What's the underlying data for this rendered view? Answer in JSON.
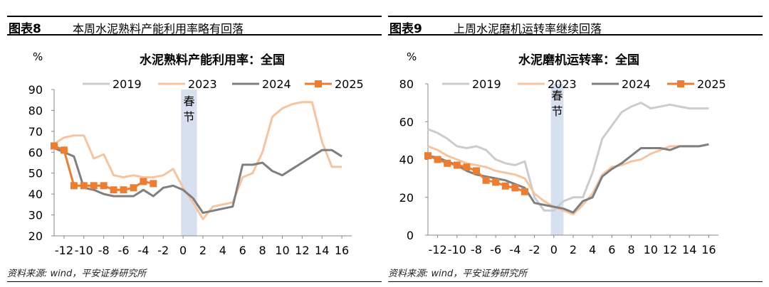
{
  "left_panel": {
    "figure_number": "图表8",
    "figure_title": "本周水泥熟料产能利用率略有回落",
    "source": "资料来源: wind，平安证券研究所"
  },
  "right_panel": {
    "figure_number": "图表9",
    "figure_title": "上周水泥磨机运转率继续回落",
    "source": "资料来源: wind，平安证券研究所"
  },
  "colors": {
    "2019": "#cccccc",
    "2023": "#f7c4a0",
    "2024": "#7f7f7f",
    "2025": "#ed7d31",
    "band": "#d6e0ef"
  },
  "chart_data": [
    {
      "type": "line",
      "title": "水泥熟料产能利用率：全国",
      "ylabel": "%",
      "ylim": [
        20,
        90
      ],
      "yticks": [
        20,
        30,
        40,
        50,
        60,
        70,
        80,
        90
      ],
      "xlim": [
        -13,
        17
      ],
      "xticks": [
        -12,
        -10,
        -8,
        -6,
        -4,
        -2,
        0,
        2,
        4,
        6,
        8,
        10,
        12,
        14,
        16
      ],
      "xticklabels": [
        "-12",
        "-10",
        "-8",
        "-6",
        "-4",
        "-2",
        "0",
        "2",
        "4",
        "6",
        "8",
        "10",
        "12",
        "14",
        "16"
      ],
      "band": {
        "x0": -0.2,
        "x1": 1.4,
        "label": [
          "春",
          "节"
        ]
      },
      "series": [
        {
          "name": "2023",
          "color_key": "2023",
          "x": [
            -13,
            -12,
            -11,
            -10,
            -9,
            -8,
            -7,
            -6,
            -5,
            -4,
            -3,
            -2,
            -1,
            0,
            1,
            2,
            3,
            4,
            5,
            6,
            7,
            8,
            9,
            10,
            11,
            12,
            13,
            14,
            15,
            16
          ],
          "y": [
            64,
            67,
            68,
            68,
            57,
            59,
            49,
            48,
            49,
            48,
            48,
            49,
            52,
            43,
            36,
            28,
            34,
            35,
            36,
            48,
            50,
            60,
            77,
            81,
            83,
            84,
            84,
            65,
            53,
            53
          ]
        },
        {
          "name": "2024",
          "color_key": "2024",
          "x": [
            -13,
            -12,
            -11,
            -10,
            -9,
            -8,
            -7,
            -6,
            -5,
            -4,
            -3,
            -2,
            -1,
            0,
            1,
            2,
            3,
            4,
            5,
            6,
            7,
            8,
            9,
            10,
            11,
            12,
            13,
            14,
            15,
            16
          ],
          "y": [
            62,
            60,
            58,
            43,
            42,
            40,
            39,
            39,
            39,
            42,
            39,
            43,
            44,
            42,
            38,
            31,
            32,
            33,
            34,
            54,
            54,
            55,
            51,
            49,
            52,
            55,
            58,
            61,
            61,
            58
          ]
        },
        {
          "name": "2019",
          "color_key": "2019",
          "x": [],
          "y": []
        },
        {
          "name": "2025",
          "color_key": "2025",
          "marker": "square",
          "x": [
            -13,
            -12,
            -11,
            -10,
            -9,
            -8,
            -7,
            -6,
            -5,
            -4,
            -3
          ],
          "y": [
            63,
            61,
            44,
            44,
            44,
            44,
            42,
            42,
            43,
            46,
            45
          ]
        }
      ],
      "legend": [
        "2019",
        "2023",
        "2024",
        "2025"
      ]
    },
    {
      "type": "line",
      "title": "水泥磨机运转率：全国",
      "ylabel": "%",
      "ylim": [
        0,
        80
      ],
      "yticks": [
        0,
        20,
        40,
        60,
        80
      ],
      "xlim": [
        -13,
        17
      ],
      "xticks": [
        -12,
        -10,
        -8,
        -6,
        -4,
        -2,
        0,
        2,
        4,
        6,
        8,
        10,
        12,
        14,
        16
      ],
      "xticklabels": [
        "-12",
        "-10",
        "-8",
        "-6",
        "-4",
        "-2",
        "0",
        "2",
        "4",
        "6",
        "8",
        "10",
        "12",
        "14",
        "16"
      ],
      "band": {
        "x0": -0.3,
        "x1": 1.0,
        "label": [
          "春",
          "节"
        ]
      },
      "series": [
        {
          "name": "2019",
          "color_key": "2019",
          "x": [
            -13,
            -12,
            -11,
            -10,
            -9,
            -8,
            -7,
            -6,
            -5,
            -4,
            -3,
            -2,
            -1,
            0,
            1,
            2,
            3,
            4,
            5,
            6,
            7,
            8,
            9,
            10,
            11,
            12,
            13,
            14,
            15,
            16
          ],
          "y": [
            56,
            54,
            51,
            47,
            46,
            47,
            45,
            40,
            38,
            37,
            39,
            20,
            13,
            13,
            18,
            20,
            20,
            33,
            51,
            58,
            65,
            68,
            70,
            67,
            68,
            69,
            68,
            67,
            67,
            67
          ]
        },
        {
          "name": "2023",
          "color_key": "2023",
          "x": [
            -13,
            -12,
            -11,
            -10,
            -9,
            -8,
            -7,
            -6,
            -5,
            -4,
            -3,
            -2,
            -1,
            0,
            1,
            2,
            3,
            4,
            5,
            6,
            7,
            8,
            9,
            10,
            11,
            12,
            13,
            14,
            15,
            16
          ],
          "y": [
            47,
            45,
            42,
            40,
            38,
            37,
            36,
            34,
            33,
            32,
            30,
            22,
            18,
            15,
            13,
            11,
            16,
            22,
            32,
            36,
            37,
            39,
            40,
            43,
            45,
            47,
            47,
            47,
            47,
            48
          ]
        },
        {
          "name": "2024",
          "color_key": "2024",
          "x": [
            -13,
            -12,
            -11,
            -10,
            -9,
            -8,
            -7,
            -6,
            -5,
            -4,
            -3,
            -2,
            -1,
            0,
            1,
            2,
            3,
            4,
            5,
            6,
            7,
            8,
            9,
            10,
            11,
            12,
            13,
            14,
            15,
            16
          ],
          "y": [
            42,
            41,
            39,
            37,
            34,
            32,
            31,
            30,
            29,
            27,
            25,
            17,
            16,
            15,
            14,
            12,
            18,
            20,
            31,
            35,
            38,
            42,
            46,
            46,
            46,
            45,
            47,
            47,
            47,
            48
          ]
        },
        {
          "name": "2025",
          "color_key": "2025",
          "marker": "square",
          "x": [
            -13,
            -12,
            -11,
            -10,
            -9,
            -8,
            -7,
            -6,
            -5,
            -4,
            -3
          ],
          "y": [
            42,
            40,
            38,
            37,
            36,
            34,
            29,
            28,
            26,
            25,
            23
          ]
        }
      ],
      "legend": [
        "2019",
        "2023",
        "2024",
        "2025"
      ]
    }
  ]
}
